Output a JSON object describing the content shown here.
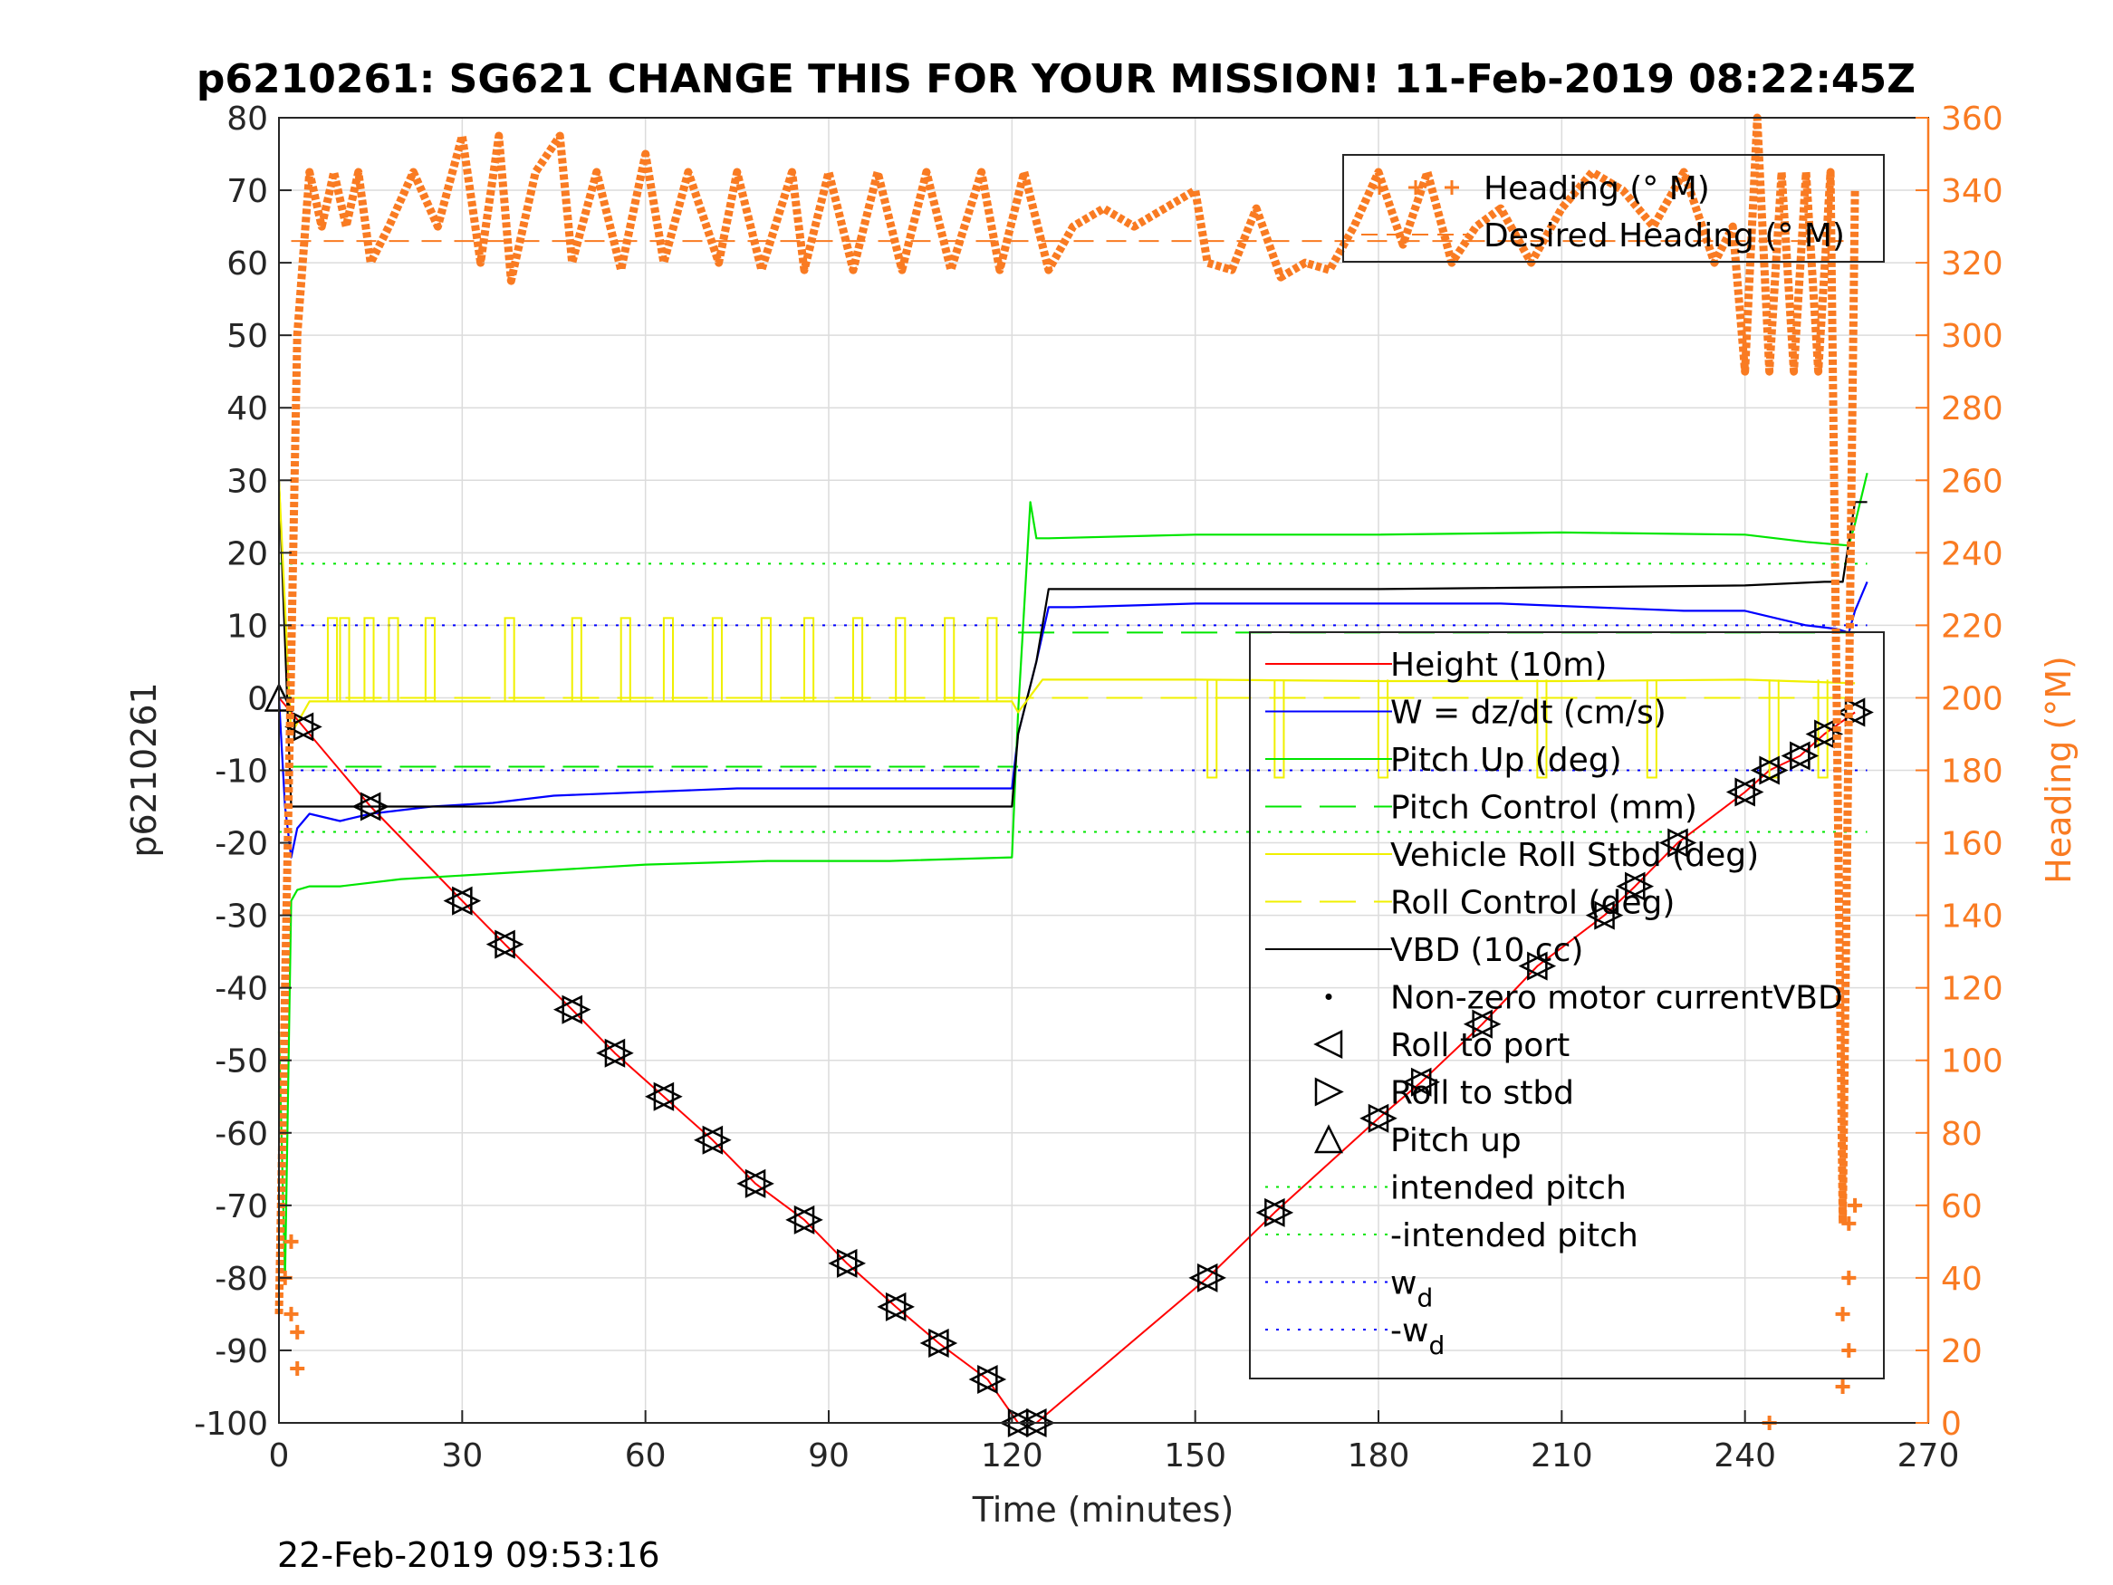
{
  "chart_data": {
    "type": "line",
    "title": "p6210261: SG621 CHANGE THIS FOR YOUR MISSION! 11-Feb-2019 08:22:45Z",
    "xlabel": "Time (minutes)",
    "ylabel": "p6210261",
    "y2label": "Heading (°M)",
    "timestamp": "22-Feb-2019 09:53:16",
    "xlim": [
      0,
      270
    ],
    "ylim": [
      -100,
      80
    ],
    "y2lim": [
      0,
      360
    ],
    "xticks": [
      0,
      30,
      60,
      90,
      120,
      150,
      180,
      210,
      240,
      270
    ],
    "yticks": [
      -100,
      -90,
      -80,
      -70,
      -60,
      -50,
      -40,
      -30,
      -20,
      -10,
      0,
      10,
      20,
      30,
      40,
      50,
      60,
      70,
      80
    ],
    "y2ticks": [
      0,
      20,
      40,
      60,
      80,
      100,
      120,
      140,
      160,
      180,
      200,
      220,
      240,
      260,
      280,
      300,
      320,
      340,
      360
    ],
    "grid": true,
    "legend_top": {
      "placement": "top-right",
      "entries": [
        {
          "label": "Heading (° M)",
          "color": "#f97b22",
          "style": "plus"
        },
        {
          "label": "Desired Heading (° M)",
          "color": "#f97b22",
          "style": "dashed"
        }
      ]
    },
    "legend_main": {
      "placement": "right",
      "entries": [
        {
          "label": "Height (10m)",
          "color": "#ff0000",
          "style": "solid"
        },
        {
          "label": "W = dz/dt (cm/s)",
          "color": "#0000ff",
          "style": "solid"
        },
        {
          "label": "Pitch Up (deg)",
          "color": "#00e600",
          "style": "solid"
        },
        {
          "label": "Pitch Control (mm)",
          "color": "#00e600",
          "style": "dashed"
        },
        {
          "label": "Vehicle Roll Stbd (deg)",
          "color": "#f0f000",
          "style": "solid"
        },
        {
          "label": "Roll Control (deg)",
          "color": "#f0f000",
          "style": "dashed"
        },
        {
          "label": "VBD (10 cc)",
          "color": "#000000",
          "style": "solid"
        },
        {
          "label": "Non-zero motor currentVBD",
          "color": "#000000",
          "style": "dot"
        },
        {
          "label": "Roll to port",
          "color": "#000000",
          "style": "tri-left"
        },
        {
          "label": "Roll to stbd",
          "color": "#000000",
          "style": "tri-right"
        },
        {
          "label": "Pitch up",
          "color": "#000000",
          "style": "tri-up"
        },
        {
          "label": "intended pitch",
          "color": "#00e600",
          "style": "dotted"
        },
        {
          "label": "-intended pitch",
          "color": "#00e600",
          "style": "dotted"
        },
        {
          "label": "w",
          "sub": "d",
          "color": "#0000ff",
          "style": "dotted"
        },
        {
          "label": "-w",
          "sub": "d",
          "color": "#0000ff",
          "style": "dotted"
        }
      ]
    },
    "series": [
      {
        "name": "Height (10m)",
        "color": "#ff0000",
        "x": [
          0,
          4,
          15,
          30,
          37,
          48,
          55,
          63,
          71,
          78,
          86,
          93,
          101,
          108,
          116,
          121,
          124,
          152,
          163,
          180,
          187,
          197,
          206,
          217,
          222,
          229,
          240,
          244,
          249,
          253,
          258
        ],
        "y": [
          0,
          -4,
          -15,
          -28,
          -34,
          -43,
          -49,
          -55,
          -61,
          -67,
          -72,
          -78,
          -84,
          -89,
          -94,
          -100,
          -100,
          -80,
          -71,
          -58,
          -53,
          -45,
          -37,
          -30,
          -26,
          -20,
          -13,
          -10,
          -8,
          -5,
          -2
        ]
      },
      {
        "name": "W = dz/dt (cm/s)",
        "color": "#0000ff",
        "x": [
          0,
          1,
          2,
          3,
          5,
          10,
          15,
          25,
          35,
          45,
          60,
          75,
          90,
          105,
          120,
          121,
          124,
          126,
          130,
          150,
          170,
          200,
          230,
          240,
          245,
          250,
          255,
          257,
          258,
          260
        ],
        "y": [
          0,
          -15,
          -22,
          -18,
          -16,
          -17,
          -16,
          -15,
          -14.5,
          -13.5,
          -13,
          -12.5,
          -12.5,
          -12.5,
          -12.5,
          -5,
          5,
          12.5,
          12.5,
          13,
          13,
          13,
          12,
          12,
          11,
          10,
          9.5,
          9,
          12,
          16
        ]
      },
      {
        "name": "Pitch Up (deg)",
        "color": "#00e600",
        "x": [
          0,
          1,
          2,
          3,
          5,
          10,
          20,
          40,
          60,
          80,
          100,
          120,
          121,
          123,
          124,
          126,
          150,
          180,
          210,
          240,
          250,
          257,
          258,
          260
        ],
        "y": [
          -46,
          -80,
          -28,
          -26.5,
          -26,
          -26,
          -25,
          -24,
          -23,
          -22.5,
          -22.5,
          -22,
          -2,
          27,
          22,
          22,
          22.5,
          22.5,
          22.8,
          22.5,
          21.5,
          21,
          24,
          31
        ]
      },
      {
        "name": "VBD (10 cc)",
        "color": "#000000",
        "x": [
          0,
          2,
          120,
          121,
          124,
          126,
          130,
          180,
          240,
          253,
          256,
          258,
          260
        ],
        "y": [
          30,
          -15,
          -15,
          -5,
          5,
          15,
          15,
          15,
          15.5,
          16,
          16,
          27,
          27
        ]
      },
      {
        "name": "Vehicle Roll Stbd (deg)",
        "color": "#f0f000",
        "x": [
          0,
          2,
          5,
          10,
          30,
          60,
          90,
          120,
          121,
          125,
          150,
          180,
          210,
          240,
          258
        ],
        "y": [
          30,
          -5,
          -0.5,
          -0.5,
          -0.5,
          -0.5,
          -0.5,
          -0.5,
          -2,
          2.5,
          2.5,
          2.3,
          2.3,
          2.5,
          2
        ]
      }
    ],
    "reference_lines": [
      {
        "name": "intended pitch",
        "y": 18.5,
        "color": "#00e600"
      },
      {
        "name": "-intended pitch",
        "y": -18.5,
        "color": "#00e600"
      },
      {
        "name": "w_d",
        "y": 10,
        "color": "#0000ff"
      },
      {
        "name": "-w_d",
        "y": -10,
        "color": "#0000ff"
      },
      {
        "name": "Pitch Control (mm)",
        "y": 9,
        "y_dive": -9.5,
        "color": "#00e600"
      },
      {
        "name": "Roll Control (deg)",
        "y": 0,
        "color": "#f0f000"
      },
      {
        "name": "Desired Heading (° M)",
        "y2": 326,
        "color": "#f97b22"
      }
    ],
    "heading_series": {
      "name": "Heading (° M)",
      "color": "#f97b22",
      "axis": "right",
      "x": [
        0,
        3,
        5,
        7,
        9,
        11,
        13,
        15,
        18,
        22,
        26,
        30,
        33,
        36,
        38,
        42,
        46,
        48,
        52,
        56,
        60,
        63,
        67,
        72,
        75,
        79,
        84,
        86,
        90,
        94,
        98,
        102,
        106,
        110,
        115,
        118,
        122,
        126,
        130,
        135,
        140,
        145,
        150,
        152,
        156,
        160,
        164,
        168,
        172,
        176,
        180,
        184,
        188,
        192,
        196,
        200,
        205,
        210,
        215,
        220,
        225,
        230,
        235,
        238,
        240,
        242,
        244,
        246,
        248,
        250,
        252,
        254,
        256,
        258
      ],
      "y": [
        30,
        300,
        345,
        330,
        345,
        330,
        345,
        320,
        330,
        345,
        330,
        355,
        320,
        355,
        315,
        345,
        355,
        320,
        345,
        318,
        350,
        320,
        345,
        320,
        345,
        318,
        345,
        318,
        345,
        318,
        345,
        318,
        345,
        318,
        345,
        318,
        345,
        318,
        330,
        335,
        330,
        335,
        340,
        320,
        318,
        335,
        316,
        320,
        318,
        330,
        345,
        325,
        345,
        320,
        330,
        335,
        320,
        335,
        345,
        340,
        330,
        345,
        320,
        330,
        290,
        360,
        290,
        345,
        290,
        345,
        290,
        345,
        55,
        340
      ]
    }
  }
}
